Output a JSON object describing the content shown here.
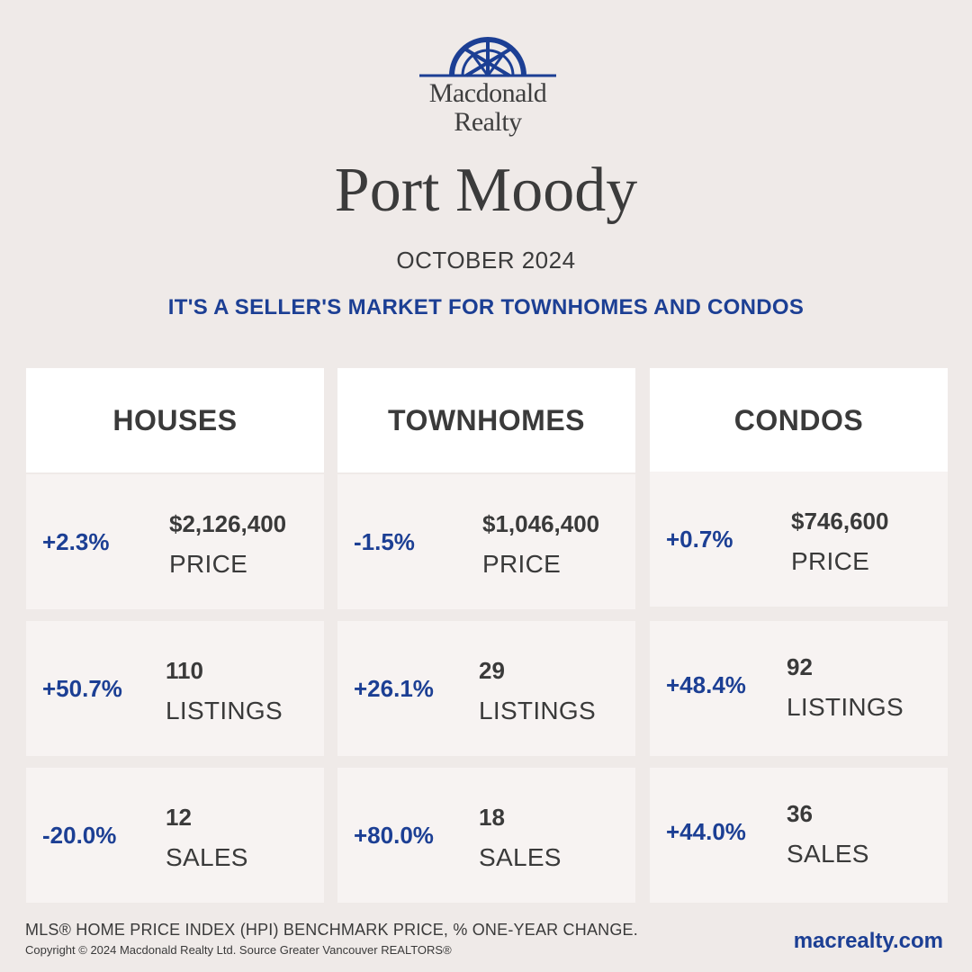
{
  "brand": {
    "logo_text_line1": "Macdonald",
    "logo_text_line2": "Realty",
    "color": "#1c3f94"
  },
  "title": "Port Moody",
  "month": "OCTOBER 2024",
  "headline": "IT'S A SELLER'S MARKET FOR TOWNHOMES AND CONDOS",
  "columns": [
    {
      "name": "HOUSES",
      "price": {
        "change": "+2.3%",
        "value": "$2,126,400",
        "label": "PRICE"
      },
      "listings": {
        "change": "+50.7%",
        "value": "110",
        "label": "LISTINGS"
      },
      "sales": {
        "change": "-20.0%",
        "value": "12",
        "label": "SALES"
      }
    },
    {
      "name": "TOWNHOMES",
      "price": {
        "change": "-1.5%",
        "value": "$1,046,400",
        "label": "PRICE"
      },
      "listings": {
        "change": "+26.1%",
        "value": "29",
        "label": "LISTINGS"
      },
      "sales": {
        "change": "+80.0%",
        "value": "18",
        "label": "SALES"
      }
    },
    {
      "name": "CONDOS",
      "price": {
        "change": "+0.7%",
        "value": "$746,600",
        "label": "PRICE"
      },
      "listings": {
        "change": "+48.4%",
        "value": "92",
        "label": "LISTINGS"
      },
      "sales": {
        "change": "+44.0%",
        "value": "36",
        "label": "SALES"
      }
    }
  ],
  "footer": {
    "note": "MLS® HOME PRICE INDEX (HPI) BENCHMARK PRICE, % ONE-YEAR CHANGE.",
    "copyright": "Copyright © 2024 Macdonald Realty Ltd. Source Greater Vancouver REALTORS®",
    "website": "macrealty.com"
  }
}
